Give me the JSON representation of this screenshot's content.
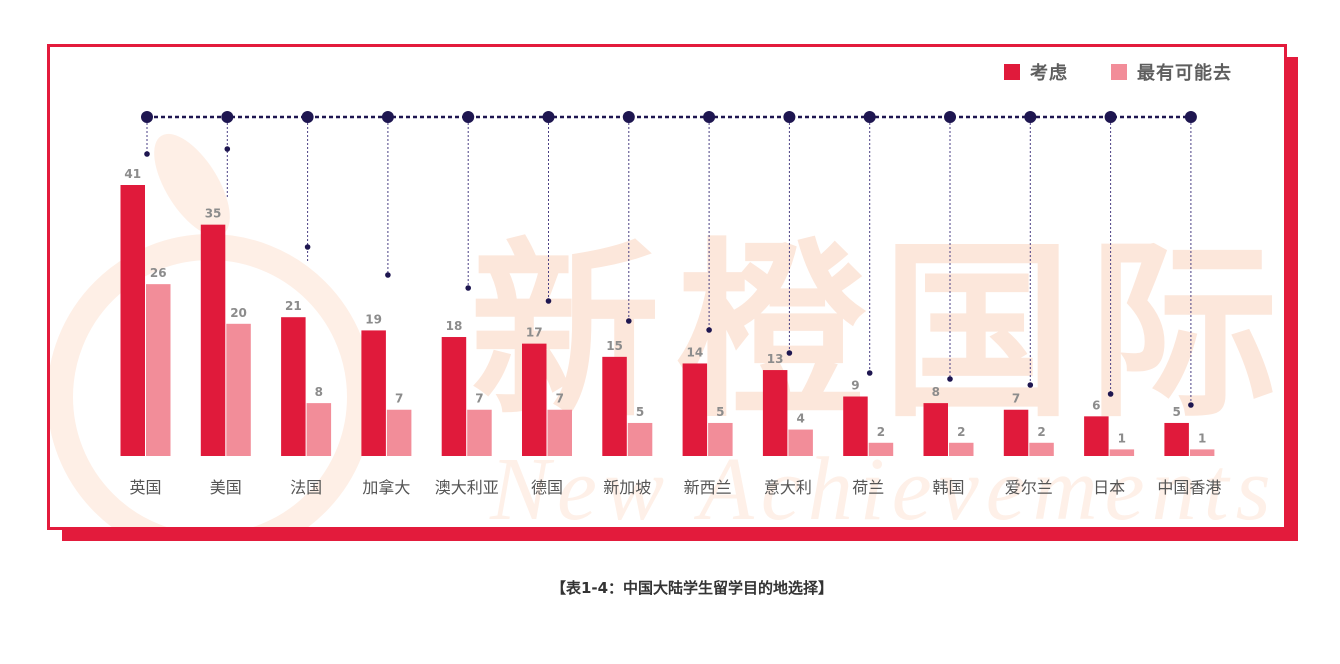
{
  "chart_data": {
    "type": "bar",
    "title": "【表1-4：中国大陆学生留学目的地选择】",
    "categories": [
      "英国",
      "美国",
      "法国",
      "加拿大",
      "澳大利亚",
      "德国",
      "新加坡",
      "新西兰",
      "意大利",
      "荷兰",
      "韩国",
      "爱尔兰",
      "日本",
      "中国香港"
    ],
    "series": [
      {
        "name": "考虑",
        "values": [
          41,
          35,
          21,
          19,
          18,
          17,
          15,
          14,
          13,
          9,
          8,
          7,
          6,
          5
        ],
        "color": "#E01A3B"
      },
      {
        "name": "最有可能去",
        "values": [
          26,
          20,
          8,
          7,
          7,
          7,
          5,
          5,
          4,
          2,
          2,
          2,
          1,
          1
        ],
        "color": "#F28D99"
      }
    ],
    "xlabel": "",
    "ylabel": "",
    "ylim": [
      0,
      41
    ],
    "grid": false,
    "legend": "top-right"
  },
  "watermark": {
    "cn": "新橙国际",
    "en": "New Achievements"
  },
  "colors": {
    "frame": "#E31B3C",
    "timeline": "#1E1650",
    "timeline_drop": "#4A3F84"
  }
}
